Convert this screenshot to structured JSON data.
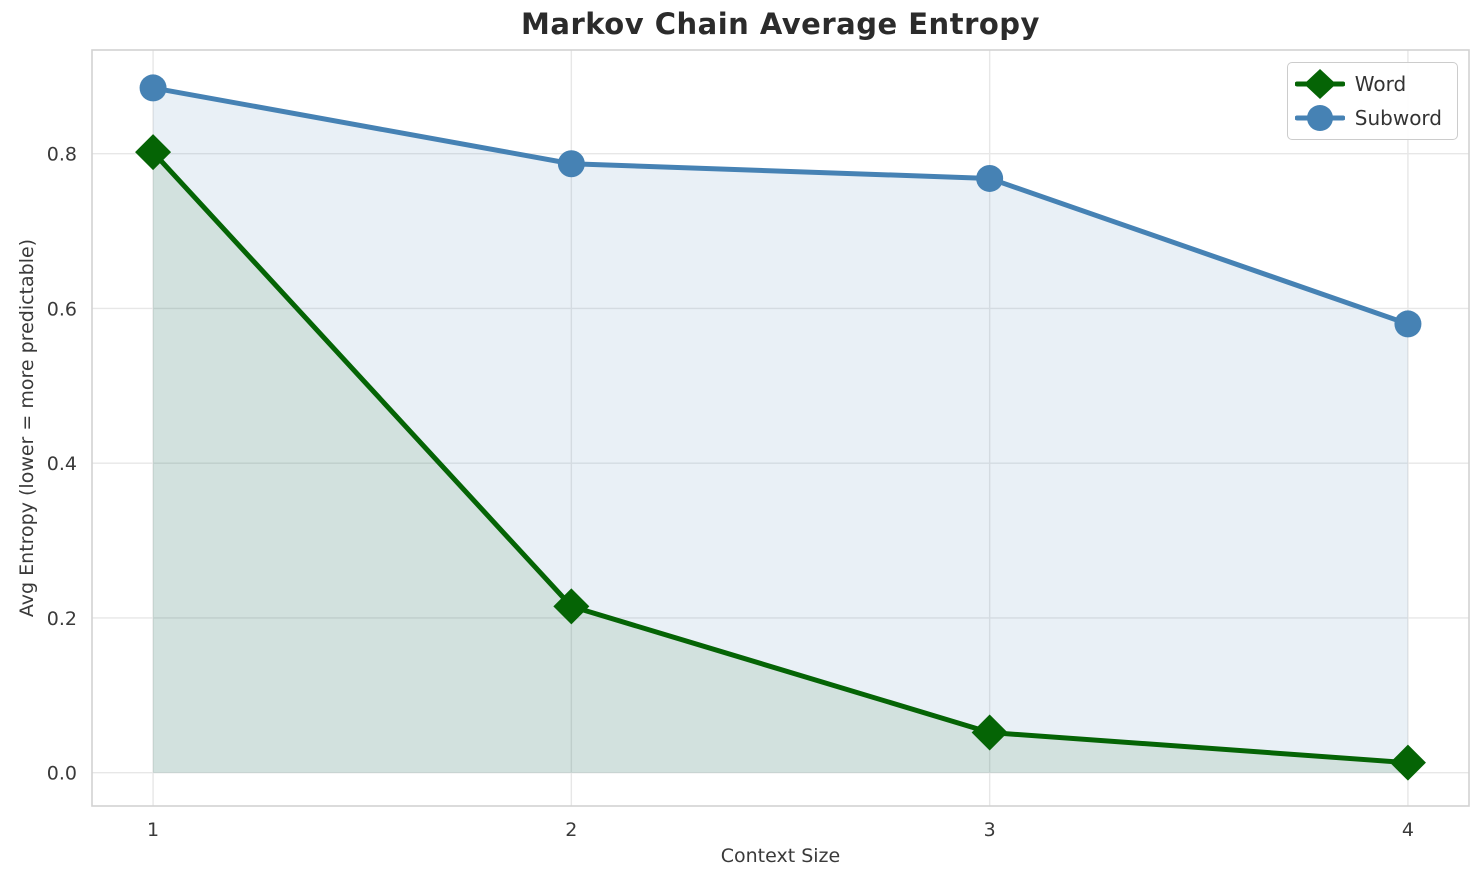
{
  "figure": {
    "title": "Markov Chain Average Entropy",
    "xlabel": "Context Size",
    "ylabel": "Avg Entropy (lower = more predictable)"
  },
  "legend": {
    "position": "upper right",
    "items": [
      {
        "label": "Word",
        "marker": "diamond",
        "color": "#056405"
      },
      {
        "label": "Subword",
        "marker": "circle",
        "color": "#4682b4"
      }
    ]
  },
  "chart_data": {
    "type": "line",
    "title": "Markov Chain Average Entropy",
    "xlabel": "Context Size",
    "ylabel": "Avg Entropy (lower = more predictable)",
    "x": [
      1,
      2,
      3,
      4
    ],
    "series": [
      {
        "name": "Word",
        "values": [
          0.802,
          0.215,
          0.052,
          0.013
        ],
        "color": "#056405",
        "marker": "diamond",
        "fill": true
      },
      {
        "name": "Subword",
        "values": [
          0.885,
          0.787,
          0.768,
          0.58
        ],
        "color": "#4682b4",
        "marker": "circle",
        "fill": true
      }
    ],
    "xticks": [
      1,
      2,
      3,
      4
    ],
    "yticks": [
      0.0,
      0.2,
      0.4,
      0.6,
      0.8
    ],
    "xlim": [
      0.854,
      4.146
    ],
    "ylim": [
      -0.043,
      0.934
    ],
    "grid": true,
    "grid_color": "#e7e7e7",
    "spine_color": "#d2d2d2",
    "tick_color": "#3a3a3a",
    "fill_alpha_word": 0.1,
    "fill_alpha_subword": 0.12,
    "fill_baseline": 0.0,
    "legend_position": "upper right"
  }
}
